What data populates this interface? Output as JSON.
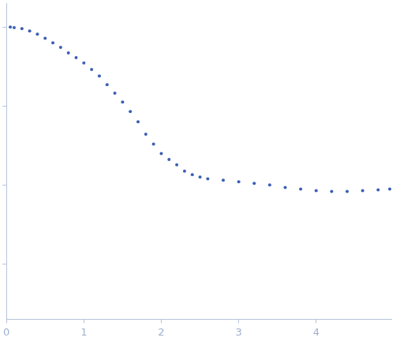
{
  "chart_data": {
    "type": "scatter",
    "log": "y",
    "grid": false,
    "tick_labels": "x",
    "color": "#3a5fb5",
    "marker": "circle",
    "x": [
      0.05,
      0.1,
      0.2,
      0.3,
      0.4,
      0.5,
      0.6,
      0.7,
      0.8,
      0.9,
      1.0,
      1.1,
      1.2,
      1.3,
      1.4,
      1.5,
      1.6,
      1.7,
      1.8,
      1.9,
      2.0,
      2.1,
      2.2,
      2.3,
      2.4,
      2.5,
      2.6,
      2.8,
      3.0,
      3.2,
      3.4,
      3.6,
      3.8,
      4.0,
      4.2,
      4.4,
      4.6,
      4.8,
      4.95
    ],
    "values": [
      1.0,
      0.98,
      0.955,
      0.89,
      0.81,
      0.72,
      0.63,
      0.55,
      0.47,
      0.41,
      0.35,
      0.29,
      0.24,
      0.186,
      0.145,
      0.112,
      0.085,
      0.063,
      0.044,
      0.033,
      0.025,
      0.021,
      0.018,
      0.015,
      0.0135,
      0.0126,
      0.012,
      0.0115,
      0.011,
      0.0105,
      0.01,
      0.0093,
      0.0089,
      0.0085,
      0.0083,
      0.0083,
      0.0085,
      0.0087,
      0.0089
    ],
    "xlim": [
      0,
      4.97
    ],
    "xticks": [
      0,
      1,
      2,
      3,
      4
    ],
    "ylim": [
      0.0002,
      2
    ],
    "yticks": [
      0.001,
      0.01,
      0.1,
      1
    ]
  }
}
